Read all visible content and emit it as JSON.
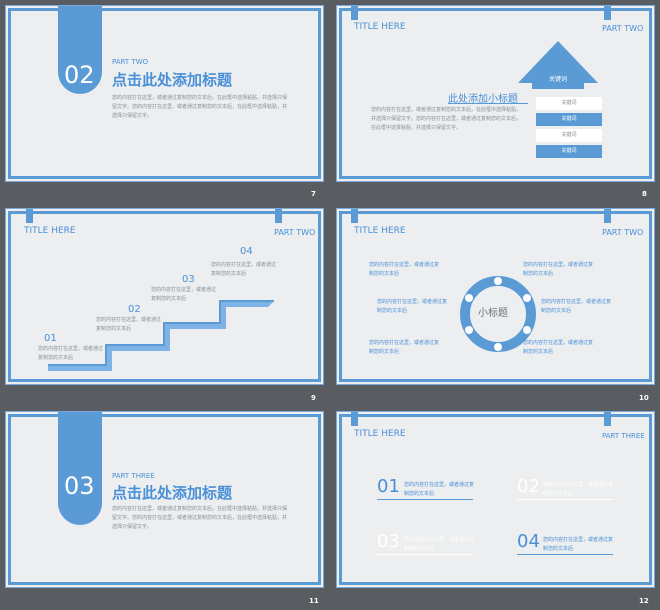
{
  "slides": [
    {
      "num": "7",
      "big_num": "02",
      "part": "PART TWO",
      "title": "点击此处添加标题",
      "body": "您的内容打在这里，或者通过复制您的文本后，在此框中选择粘贴，并选择只保留文字。您的内容打在这里，或者通过复制您的文本后，在此框中选择粘贴，并选择只保留文字。"
    },
    {
      "num": "8",
      "header": "TITLE HERE",
      "part": "PART TWO",
      "subtitle": "此处添加小标题",
      "body": "您的内容打在这里，或者通过复制您的文本后，在此框中选择粘贴，并选择只保留文字。您的内容打在这里，或者通过复制您的文本后，在此框中选择粘贴，并选择只保留文字。",
      "arrow_label": "关键词",
      "rows": [
        "关键词",
        "关键词",
        "关键词",
        "关键词"
      ]
    },
    {
      "num": "9",
      "header": "TITLE HERE",
      "part": "PART TWO",
      "steps": [
        {
          "n": "01",
          "text": "您的内容打在这里，或者通过复制您的文本后"
        },
        {
          "n": "02",
          "text": "您的内容打在这里，或者通过复制您的文本后"
        },
        {
          "n": "03",
          "text": "您的内容打在这里，或者通过复制您的文本后"
        },
        {
          "n": "04",
          "text": "您的内容打在这里，或者通过复制您的文本后"
        }
      ]
    },
    {
      "num": "10",
      "header": "TITLE HERE",
      "part": "PART TWO",
      "center": "小标题",
      "items": [
        "您的内容打在这里，或者通过复制您的文本后",
        "您的内容打在这里，或者通过复制您的文本后",
        "您的内容打在这里，或者通过复制您的文本后",
        "您的内容打在这里，或者通过复制您的文本后",
        "您的内容打在这里，或者通过复制您的文本后",
        "您的内容打在这里，或者通过复制您的文本后"
      ]
    },
    {
      "num": "11",
      "big_num": "03",
      "part": "PART THREE",
      "title": "点击此处添加标题",
      "body": "您的内容打在这里，或者通过复制您的文本后，在此框中选择粘贴，并选择只保留文字。您的内容打在这里，或者通过复制您的文本后，在此框中选择粘贴，并选择只保留文字。"
    },
    {
      "num": "12",
      "header": "TITLE HERE",
      "part": "PART THREE",
      "items": [
        {
          "n": "01",
          "text": "您的内容打在这里，或者通过复制您的文本后"
        },
        {
          "n": "02",
          "text": "您的内容打在这里，或者通过复制您的文本后"
        },
        {
          "n": "03",
          "text": "您的内容打在这里，或者通过复制您的文本后"
        },
        {
          "n": "04",
          "text": "您的内容打在这里，或者通过复制您的文本后"
        }
      ]
    }
  ],
  "colors": {
    "accent": "#5b9bd5",
    "background": "#595c61",
    "slide": "#eceeef"
  }
}
